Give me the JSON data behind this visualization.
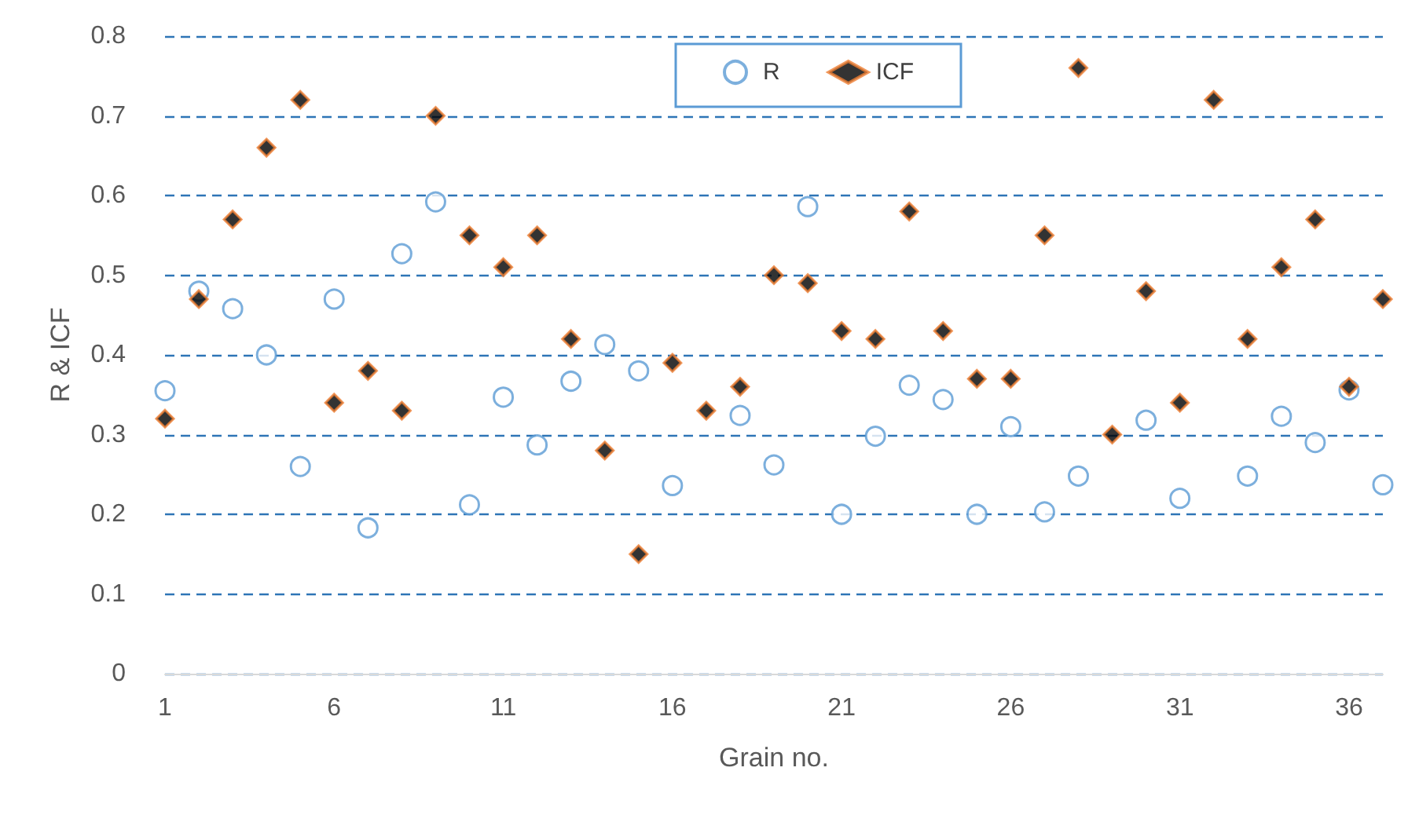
{
  "chart_data": {
    "type": "scatter",
    "xlabel": "Grain no.",
    "ylabel": "R & ICF",
    "x": [
      1,
      2,
      3,
      4,
      5,
      6,
      7,
      8,
      9,
      10,
      11,
      12,
      13,
      14,
      15,
      16,
      17,
      18,
      19,
      20,
      21,
      22,
      23,
      24,
      25,
      26,
      27,
      28,
      29,
      30,
      31,
      32,
      33,
      34,
      35,
      36,
      37
    ],
    "series": [
      {
        "name": "R",
        "color": "#5b9bd5",
        "marker": "circle",
        "values": [
          0.355,
          0.48,
          0.458,
          0.4,
          0.26,
          0.47,
          0.183,
          0.527,
          0.592,
          0.212,
          0.347,
          0.287,
          0.367,
          0.413,
          0.38,
          0.236,
          null,
          0.324,
          0.262,
          0.586,
          0.2,
          0.298,
          0.362,
          0.344,
          0.2,
          0.31,
          0.203,
          0.248,
          null,
          0.318,
          0.22,
          null,
          0.248,
          0.323,
          0.29,
          0.356,
          0.237
        ]
      },
      {
        "name": "ICF",
        "color": "#ed7d31",
        "marker": "diamond",
        "values": [
          0.32,
          0.47,
          0.57,
          0.66,
          0.72,
          0.34,
          0.38,
          0.33,
          0.7,
          0.55,
          0.51,
          0.55,
          0.42,
          0.28,
          0.15,
          0.39,
          0.33,
          0.36,
          0.5,
          0.49,
          0.43,
          0.42,
          0.58,
          0.43,
          0.37,
          0.37,
          0.55,
          0.76,
          0.3,
          0.48,
          0.34,
          0.72,
          0.42,
          0.51,
          0.57,
          0.36,
          0.47
        ]
      }
    ],
    "xlim": [
      1,
      37
    ],
    "xticks": [
      1,
      6,
      11,
      16,
      21,
      26,
      31,
      36
    ],
    "ylim": [
      0,
      0.8
    ],
    "yticks": [
      0,
      0.1,
      0.2,
      0.3,
      0.4,
      0.5,
      0.6,
      0.7,
      0.8
    ],
    "grid": "y",
    "legend": "top"
  }
}
